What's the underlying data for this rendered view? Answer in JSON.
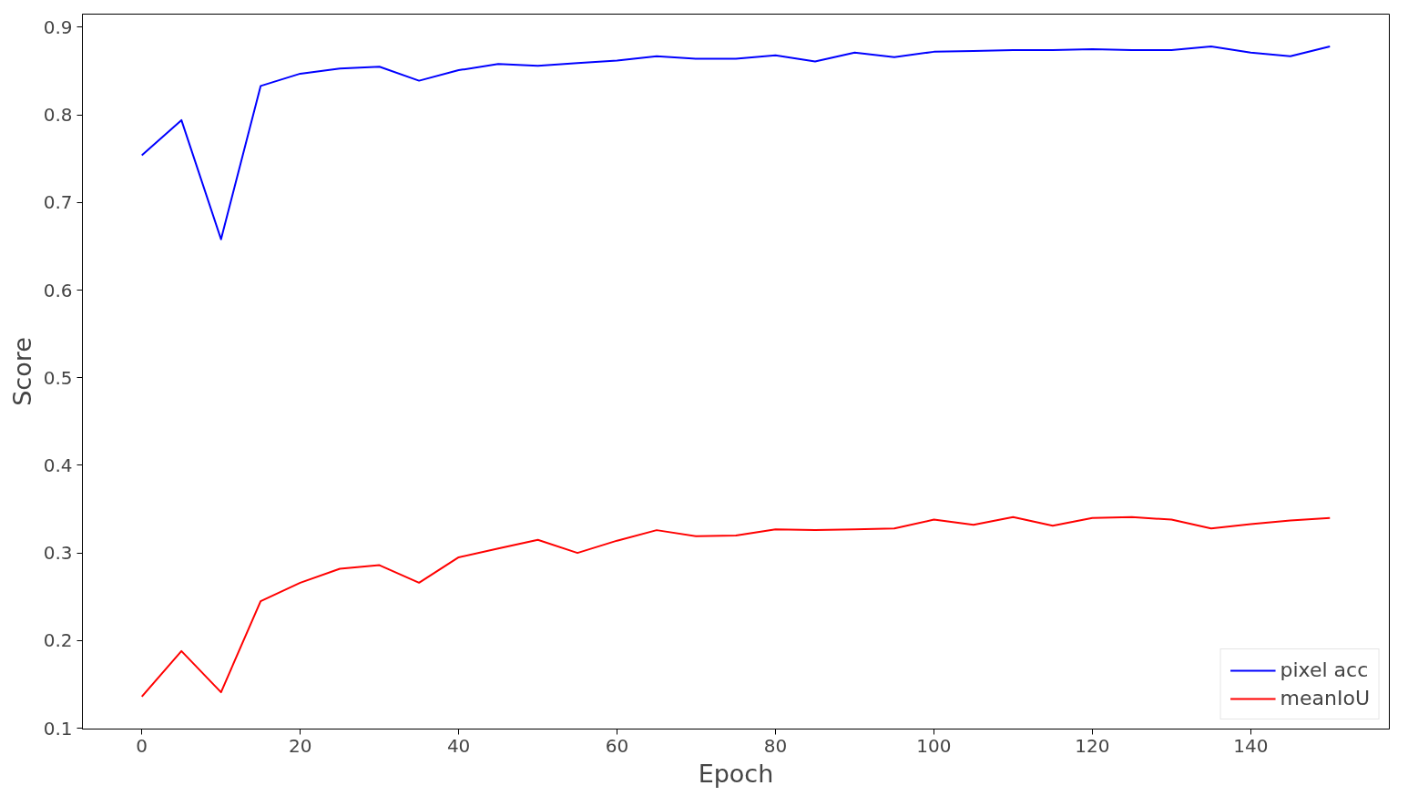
{
  "chart_data": {
    "type": "line",
    "xlabel": "Epoch",
    "ylabel": "Score",
    "x": [
      0,
      5,
      10,
      15,
      20,
      25,
      30,
      35,
      40,
      45,
      50,
      55,
      60,
      65,
      70,
      75,
      80,
      85,
      90,
      95,
      100,
      105,
      110,
      115,
      120,
      125,
      130,
      135,
      140,
      145,
      150
    ],
    "series": [
      {
        "name": "pixel acc",
        "color": "#0000ff",
        "values": [
          0.754,
          0.794,
          0.658,
          0.833,
          0.847,
          0.853,
          0.855,
          0.839,
          0.851,
          0.858,
          0.856,
          0.859,
          0.862,
          0.867,
          0.864,
          0.864,
          0.868,
          0.861,
          0.871,
          0.866,
          0.872,
          0.873,
          0.874,
          0.874,
          0.875,
          0.874,
          0.874,
          0.878,
          0.871,
          0.867,
          0.878
        ]
      },
      {
        "name": "meanIoU",
        "color": "#ff0000",
        "values": [
          0.136,
          0.188,
          0.141,
          0.245,
          0.266,
          0.282,
          0.286,
          0.266,
          0.295,
          0.305,
          0.315,
          0.3,
          0.314,
          0.326,
          0.319,
          0.32,
          0.327,
          0.326,
          0.327,
          0.328,
          0.338,
          0.332,
          0.341,
          0.331,
          0.34,
          0.341,
          0.338,
          0.328,
          0.333,
          0.337,
          0.34
        ]
      }
    ],
    "xlim": [
      -7.5,
      157.5
    ],
    "ylim": [
      0.099,
      0.915
    ],
    "xticks": [
      0,
      20,
      40,
      60,
      80,
      100,
      120,
      140
    ],
    "yticks": [
      0.1,
      0.2,
      0.3,
      0.4,
      0.5,
      0.6,
      0.7,
      0.8,
      0.9
    ],
    "grid": false,
    "legend": "bottom right",
    "marker": "none",
    "line_style": "solid"
  }
}
